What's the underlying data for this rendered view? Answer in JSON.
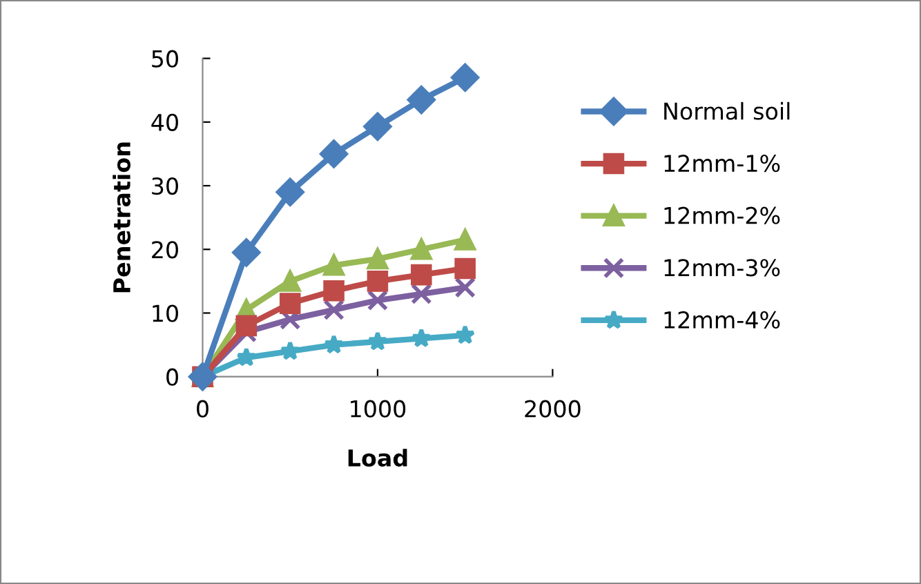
{
  "chart_data": {
    "type": "line",
    "xlabel": "Load",
    "ylabel": "Penetration",
    "x": [
      0,
      250,
      500,
      750,
      1000,
      1250,
      1500
    ],
    "series": [
      {
        "name": "Normal soil",
        "color": "#4a7ebb",
        "marker": "diamond",
        "values": [
          0,
          19.5,
          29,
          35,
          39.3,
          43.5,
          47
        ]
      },
      {
        "name": "12mm-1%",
        "color": "#be4b48",
        "marker": "square",
        "values": [
          0,
          8,
          11.5,
          13.5,
          15,
          16,
          17
        ]
      },
      {
        "name": "12mm-2%",
        "color": "#98b954",
        "marker": "triangle",
        "values": [
          0,
          10.5,
          15,
          17.5,
          18.5,
          20,
          21.5
        ]
      },
      {
        "name": "12mm-3%",
        "color": "#7d60a0",
        "marker": "cross",
        "values": [
          0,
          7,
          9,
          10.5,
          12,
          13,
          14
        ]
      },
      {
        "name": "12mm-4%",
        "color": "#46aac5",
        "marker": "star",
        "values": [
          0,
          3,
          4,
          5,
          5.5,
          6,
          6.5
        ]
      }
    ],
    "xlim": [
      0,
      2000
    ],
    "xticks": [
      0,
      1000,
      2000
    ],
    "ylim": [
      0,
      50
    ],
    "yticks": [
      0,
      10,
      20,
      30,
      40,
      50
    ],
    "grid": false,
    "legend": "right"
  }
}
